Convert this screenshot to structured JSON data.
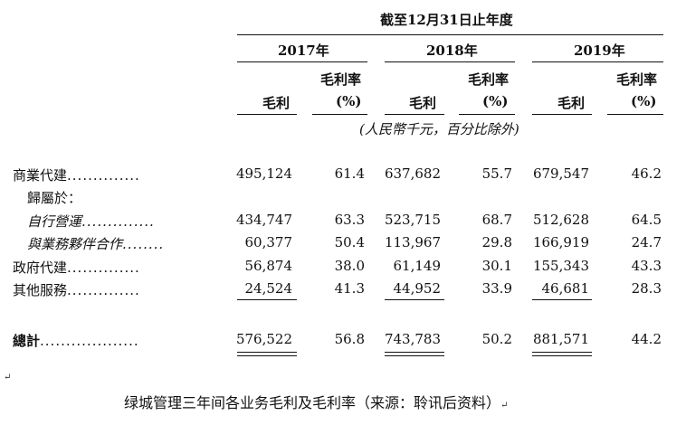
{
  "header": {
    "period_title": "截至12月31日止年度",
    "years": [
      "2017年",
      "2018年",
      "2019年"
    ],
    "col_gross_profit": "毛利",
    "col_margin_line1": "毛利率",
    "col_margin_line2": "(%)",
    "unit_note": "(人民幣千元，百分比除外)"
  },
  "rows": [
    {
      "label": "商業代建",
      "dots": "..............",
      "values": [
        "495,124",
        "61.4",
        "637,682",
        "55.7",
        "679,547",
        "46.2"
      ]
    },
    {
      "label": "歸屬於：",
      "dots": "",
      "values": [
        "",
        "",
        "",
        "",
        "",
        ""
      ]
    },
    {
      "label": "自行營運",
      "dots": "..............",
      "values": [
        "434,747",
        "63.3",
        "523,715",
        "68.7",
        "512,628",
        "64.5"
      ]
    },
    {
      "label": "與業務夥伴合作",
      "dots": "........",
      "values": [
        "60,377",
        "50.4",
        "113,967",
        "29.8",
        "166,919",
        "24.7"
      ]
    },
    {
      "label": "政府代建",
      "dots": "..............",
      "values": [
        "56,874",
        "38.0",
        "61,149",
        "30.1",
        "155,343",
        "43.3"
      ]
    },
    {
      "label": "其他服務",
      "dots": "..............",
      "values": [
        "24,524",
        "41.3",
        "44,952",
        "33.9",
        "46,681",
        "28.3"
      ]
    }
  ],
  "total": {
    "label": "總計",
    "dots": "...................",
    "values": [
      "576,522",
      "56.8",
      "743,783",
      "50.2",
      "881,571",
      "44.2"
    ]
  },
  "caption": "绿城管理三年间各业务毛利及毛利率（来源：聆讯后资料）",
  "caption_mark": "↵",
  "left_mark": "↵"
}
